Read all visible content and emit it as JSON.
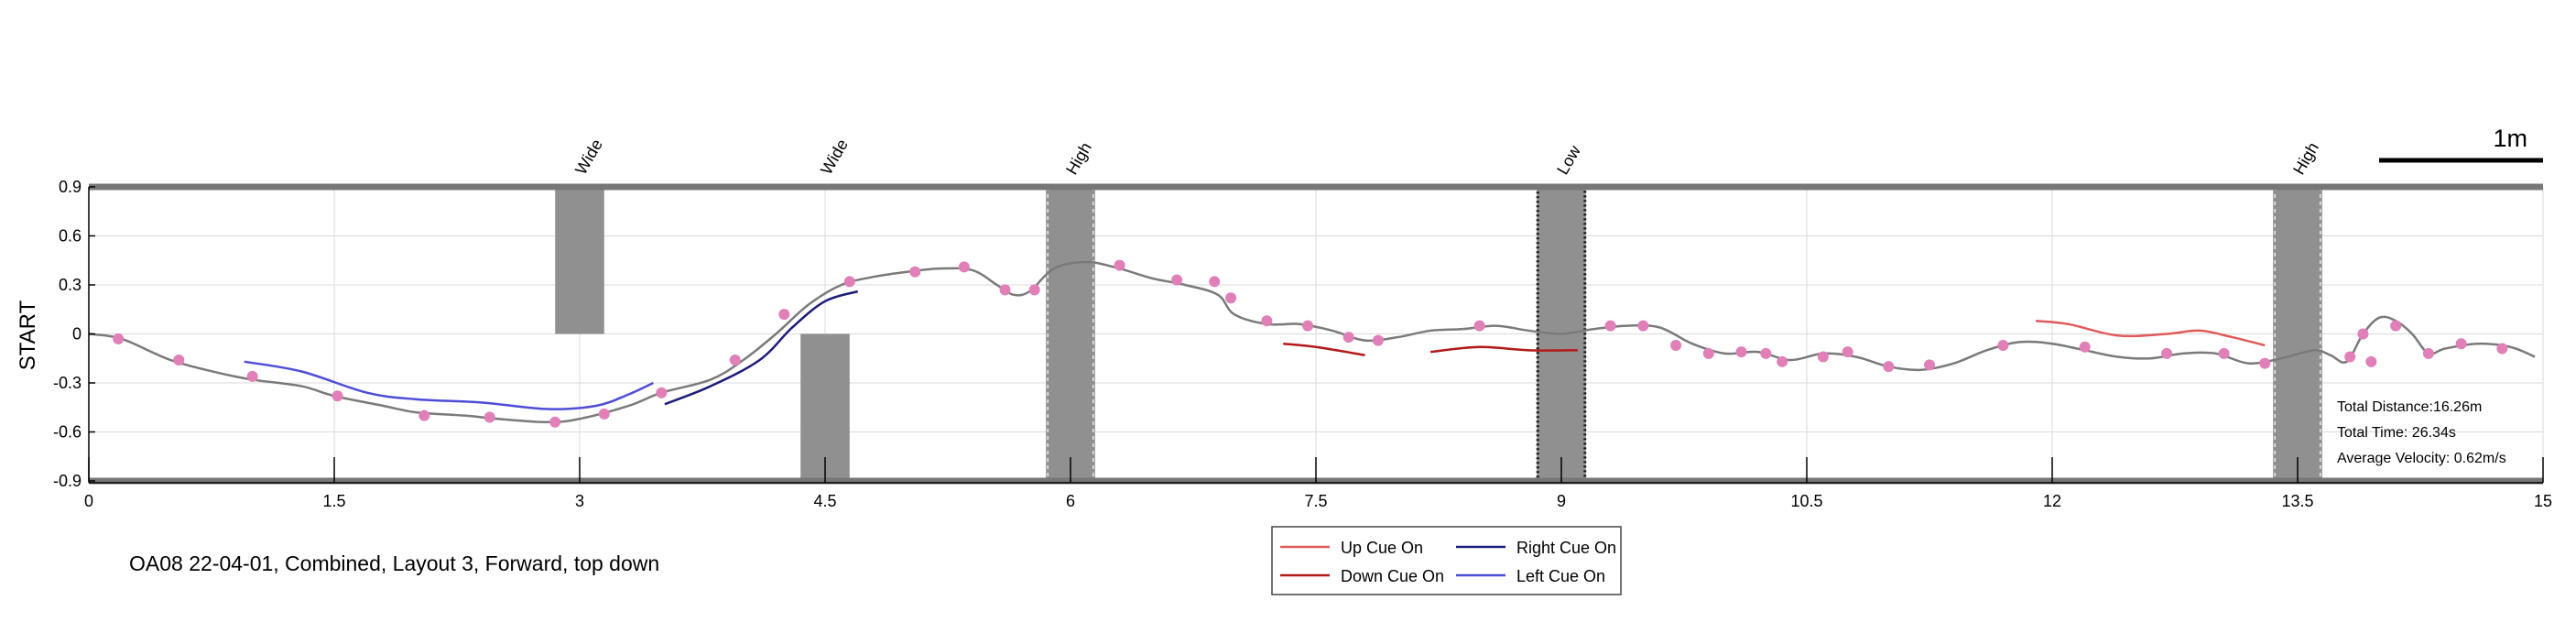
{
  "chart_data": {
    "type": "line",
    "title": "",
    "caption": "OA08 22-04-01, Combined, Layout 3, Forward, top down",
    "xlabel": "",
    "ylabel": "START",
    "xlim": [
      0,
      15
    ],
    "ylim": [
      -0.9,
      0.9
    ],
    "x_ticks": [
      0,
      1.5,
      3,
      4.5,
      6,
      7.5,
      9,
      10.5,
      12,
      13.5,
      15
    ],
    "x_tick_labels": [
      "0",
      "1.5",
      "3",
      "4.5",
      "6",
      "7.5",
      "9",
      "10.5",
      "12",
      "13.5",
      "15"
    ],
    "y_ticks": [
      0.9,
      0.6,
      0.3,
      0,
      -0.3,
      -0.6,
      -0.9
    ],
    "y_tick_labels": [
      "0.9",
      "0.6",
      "0.3",
      "0",
      "-0.3",
      "-0.6",
      "-0.9"
    ],
    "grid": true,
    "scale_bar": {
      "label": "1m",
      "length": 1
    },
    "obstacles": [
      {
        "label": "Wide",
        "x0": 2.85,
        "x1": 3.15,
        "y0": 0.0,
        "y1": 0.9,
        "style": "solid"
      },
      {
        "label": "Wide",
        "x0": 4.35,
        "x1": 4.65,
        "y0": -0.9,
        "y1": 0.0,
        "style": "solid"
      },
      {
        "label": "High",
        "x0": 5.85,
        "x1": 6.15,
        "y0": -0.9,
        "y1": 0.9,
        "style": "dashed-light"
      },
      {
        "label": "Low",
        "x0": 8.85,
        "x1": 9.15,
        "y0": -0.9,
        "y1": 0.9,
        "style": "dotted-dark"
      },
      {
        "label": "High",
        "x0": 13.35,
        "x1": 13.65,
        "y0": -0.9,
        "y1": 0.9,
        "style": "dashed-light"
      }
    ],
    "series": [
      {
        "name": "",
        "color": "#7a7a7a",
        "x": [
          0,
          0.2,
          0.5,
          0.8,
          1.0,
          1.3,
          1.5,
          1.8,
          2.0,
          2.3,
          2.5,
          2.8,
          3.0,
          3.3,
          3.5,
          3.8,
          4.0,
          4.2,
          4.4,
          4.6,
          4.8,
          5.0,
          5.2,
          5.4,
          5.55,
          5.65,
          5.75,
          5.9,
          6.1,
          6.3,
          6.5,
          6.7,
          6.9,
          7.0,
          7.2,
          7.4,
          7.6,
          7.8,
          8.0,
          8.2,
          8.4,
          8.6,
          8.8,
          9.0,
          9.2,
          9.4,
          9.6,
          9.8,
          10.0,
          10.2,
          10.4,
          10.6,
          10.8,
          11.0,
          11.2,
          11.4,
          11.6,
          11.8,
          12.0,
          12.2,
          12.4,
          12.6,
          12.8,
          13.0,
          13.2,
          13.4,
          13.6,
          13.7,
          13.8,
          13.9,
          14.0,
          14.1,
          14.2,
          14.3,
          14.4,
          14.6,
          14.8,
          14.95
        ],
        "y": [
          0,
          -0.03,
          -0.16,
          -0.24,
          -0.28,
          -0.32,
          -0.38,
          -0.44,
          -0.48,
          -0.5,
          -0.52,
          -0.54,
          -0.52,
          -0.44,
          -0.36,
          -0.28,
          -0.16,
          0.0,
          0.18,
          0.3,
          0.35,
          0.38,
          0.4,
          0.39,
          0.3,
          0.24,
          0.26,
          0.4,
          0.44,
          0.4,
          0.34,
          0.3,
          0.24,
          0.12,
          0.06,
          0.06,
          0.02,
          -0.04,
          -0.02,
          0.02,
          0.03,
          0.05,
          0.02,
          0.0,
          0.03,
          0.05,
          0.04,
          -0.06,
          -0.12,
          -0.11,
          -0.16,
          -0.12,
          -0.14,
          -0.2,
          -0.22,
          -0.18,
          -0.1,
          -0.05,
          -0.06,
          -0.1,
          -0.14,
          -0.15,
          -0.12,
          -0.12,
          -0.18,
          -0.15,
          -0.1,
          -0.13,
          -0.17,
          0.0,
          0.1,
          0.08,
          0.0,
          -0.12,
          -0.09,
          -0.06,
          -0.08,
          -0.14
        ]
      },
      {
        "name": "Left Cue On",
        "color": "#4d4dd6",
        "x": [
          0.95,
          1.3,
          1.7,
          2.0,
          2.4,
          2.8,
          3.1,
          3.3,
          3.45
        ],
        "y": [
          -0.17,
          -0.23,
          -0.36,
          -0.4,
          -0.42,
          -0.46,
          -0.44,
          -0.37,
          -0.3
        ]
      },
      {
        "name": "Right Cue On",
        "color": "#1c1c7a",
        "x": [
          3.52,
          3.8,
          4.1,
          4.3,
          4.5,
          4.7
        ],
        "y": [
          -0.43,
          -0.32,
          -0.16,
          0.04,
          0.2,
          0.26
        ]
      },
      {
        "name": "Down Cue On",
        "color": "#b31919",
        "x": [
          7.3,
          7.5,
          7.8
        ],
        "y": [
          -0.06,
          -0.08,
          -0.13
        ]
      },
      {
        "name": "Down Cue On",
        "color": "#b31919",
        "x": [
          8.2,
          8.5,
          8.8,
          9.1
        ],
        "y": [
          -0.11,
          -0.08,
          -0.1,
          -0.1
        ]
      },
      {
        "name": "Up Cue On",
        "color": "#e05a5a",
        "x": [
          11.9,
          12.1,
          12.4,
          12.7,
          12.9,
          13.1,
          13.3
        ],
        "y": [
          0.08,
          0.06,
          -0.01,
          0.0,
          0.02,
          -0.02,
          -0.07
        ]
      }
    ],
    "markers": {
      "color": "#e07fb8",
      "x": [
        0.18,
        0.55,
        1.0,
        1.52,
        2.05,
        2.45,
        2.85,
        3.15,
        3.5,
        3.95,
        4.25,
        4.65,
        5.05,
        5.35,
        5.6,
        5.78,
        6.3,
        6.65,
        6.88,
        6.98,
        7.2,
        7.45,
        7.7,
        7.88,
        8.5,
        9.3,
        9.5,
        9.7,
        9.9,
        10.1,
        10.25,
        10.35,
        10.6,
        10.75,
        11.0,
        11.25,
        11.7,
        12.2,
        12.7,
        13.05,
        13.3,
        13.82,
        13.9,
        13.95,
        14.1,
        14.3,
        14.5,
        14.75
      ],
      "y": [
        -0.03,
        -0.16,
        -0.26,
        -0.38,
        -0.5,
        -0.51,
        -0.54,
        -0.49,
        -0.36,
        -0.16,
        0.12,
        0.32,
        0.38,
        0.41,
        0.27,
        0.27,
        0.42,
        0.33,
        0.32,
        0.22,
        0.08,
        0.05,
        -0.02,
        -0.04,
        0.05,
        0.05,
        0.05,
        -0.07,
        -0.12,
        -0.11,
        -0.12,
        -0.17,
        -0.14,
        -0.11,
        -0.2,
        -0.19,
        -0.07,
        -0.08,
        -0.12,
        -0.12,
        -0.18,
        -0.14,
        0.0,
        -0.17,
        0.05,
        -0.12,
        -0.06,
        -0.09
      ]
    },
    "legend": {
      "placement": "bottom-center",
      "entries": [
        {
          "label": "Up Cue On",
          "color": "#e05a5a"
        },
        {
          "label": "Right Cue On",
          "color": "#1c1c7a"
        },
        {
          "label": "Down Cue On",
          "color": "#b31919"
        },
        {
          "label": "Left Cue On",
          "color": "#4d4dd6"
        }
      ]
    },
    "stats": [
      "Total Distance:16.26m",
      "Total Time: 26.34s",
      "Average Velocity: 0.62m/s"
    ]
  }
}
